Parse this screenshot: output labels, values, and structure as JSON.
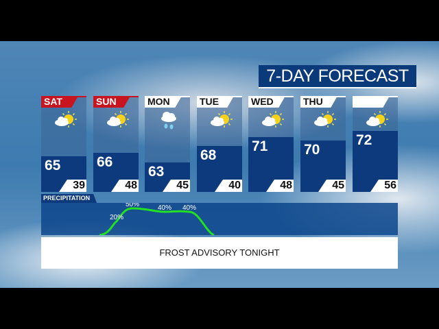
{
  "title": "7-DAY FORECAST",
  "colors": {
    "high_box": "#0d3a7c",
    "weekend_header": "#c8141e",
    "precip_line": "#22e022"
  },
  "days": [
    {
      "label": "SAT",
      "high": "65",
      "low": "39",
      "icon": "partly-sunny-icon",
      "weekend": true
    },
    {
      "label": "SUN",
      "high": "66",
      "low": "48",
      "icon": "partly-sunny-icon",
      "weekend": true
    },
    {
      "label": "MON",
      "high": "63",
      "low": "45",
      "icon": "rain-icon",
      "weekend": false
    },
    {
      "label": "TUE",
      "high": "68",
      "low": "40",
      "icon": "partly-sunny-icon",
      "weekend": false
    },
    {
      "label": "WED",
      "high": "71",
      "low": "48",
      "icon": "partly-sunny-icon",
      "weekend": false
    },
    {
      "label": "THU",
      "high": "70",
      "low": "45",
      "icon": "partly-sunny-icon",
      "weekend": false
    },
    {
      "label": "",
      "high": "72",
      "low": "56",
      "icon": "partly-sunny-icon",
      "weekend": false
    }
  ],
  "precipitation": {
    "label": "PRECIPITATION",
    "points": [
      {
        "label": "20%",
        "value": 20
      },
      {
        "label": "50%",
        "value": 50
      },
      {
        "label": "40%",
        "value": 40
      },
      {
        "label": "40%",
        "value": 40
      }
    ]
  },
  "advisory": "FROST ADVISORY TONIGHT"
}
